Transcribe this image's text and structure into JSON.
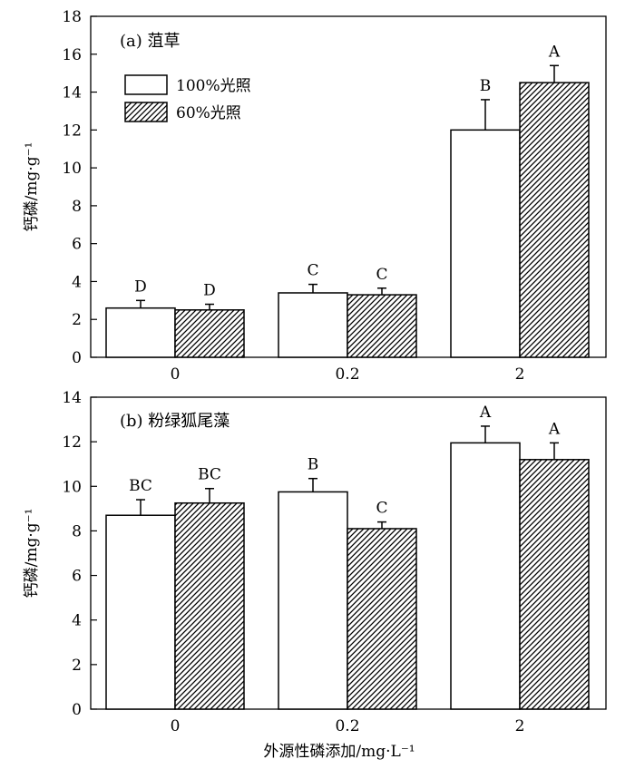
{
  "chart_data": [
    {
      "type": "bar",
      "title": "(a) 菹草",
      "ylabel": "钙磷/mg·g⁻¹",
      "xlabel": "",
      "categories": [
        "0",
        "0.2",
        "2"
      ],
      "ylim": [
        0,
        18
      ],
      "yticks": [
        "0",
        "2",
        "4",
        "6",
        "8",
        "10",
        "12",
        "14",
        "16",
        "18"
      ],
      "legend_position": "upper-left",
      "series": [
        {
          "name": "100%光照",
          "pattern": "white",
          "values": [
            2.6,
            3.4,
            12.0
          ],
          "errors": [
            0.4,
            0.45,
            1.6
          ],
          "labels": [
            "D",
            "C",
            "B"
          ]
        },
        {
          "name": "60%光照",
          "pattern": "hatched",
          "values": [
            2.5,
            3.3,
            14.5
          ],
          "errors": [
            0.3,
            0.35,
            0.9
          ],
          "labels": [
            "D",
            "C",
            "A"
          ]
        }
      ]
    },
    {
      "type": "bar",
      "title": "(b) 粉绿狐尾藻",
      "ylabel": "钙磷/mg·g⁻¹",
      "xlabel": "外源性磷添加/mg·L⁻¹",
      "categories": [
        "0",
        "0.2",
        "2"
      ],
      "ylim": [
        0,
        14
      ],
      "yticks": [
        "0",
        "2",
        "4",
        "6",
        "8",
        "10",
        "12",
        "14"
      ],
      "series": [
        {
          "name": "100%光照",
          "pattern": "white",
          "values": [
            8.7,
            9.75,
            11.95
          ],
          "errors": [
            0.7,
            0.6,
            0.75
          ],
          "labels": [
            "BC",
            "B",
            "A"
          ]
        },
        {
          "name": "60%光照",
          "pattern": "hatched",
          "values": [
            9.25,
            8.1,
            11.2
          ],
          "errors": [
            0.65,
            0.3,
            0.75
          ],
          "labels": [
            "BC",
            "C",
            "A"
          ]
        }
      ]
    }
  ]
}
